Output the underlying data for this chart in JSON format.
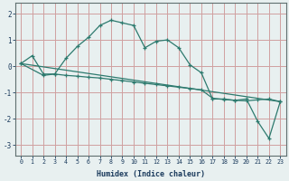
{
  "xlabel": "Humidex (Indice chaleur)",
  "ylabel": "",
  "background_color": "#e8f0f0",
  "grid_color": "#d0a0a0",
  "line_color": "#2d7a6e",
  "xlim": [
    -0.5,
    23.5
  ],
  "ylim": [
    -3.4,
    2.4
  ],
  "yticks": [
    2,
    1,
    0,
    -1,
    -2,
    -3
  ],
  "xticks": [
    0,
    1,
    2,
    3,
    4,
    5,
    6,
    7,
    8,
    9,
    10,
    11,
    12,
    13,
    14,
    15,
    16,
    17,
    18,
    19,
    20,
    21,
    22,
    23
  ],
  "series": [
    {
      "x": [
        0,
        1,
        2,
        3,
        4,
        5,
        6,
        7,
        8,
        9,
        10,
        11,
        12,
        13,
        14,
        15,
        16,
        17,
        18,
        19,
        20,
        21,
        22,
        23
      ],
      "y": [
        0.1,
        0.4,
        -0.3,
        -0.3,
        0.3,
        0.75,
        1.1,
        1.55,
        1.75,
        1.65,
        1.55,
        0.7,
        0.95,
        1.0,
        0.7,
        0.05,
        -0.25,
        -1.25,
        -1.25,
        -1.3,
        -1.25,
        -2.1,
        -2.75,
        -1.35
      ]
    },
    {
      "x": [
        0,
        2,
        3,
        4,
        5,
        6,
        7,
        8,
        9,
        10,
        11,
        12,
        13,
        14,
        15,
        16,
        17,
        18,
        19,
        20,
        21,
        22,
        23
      ],
      "y": [
        0.1,
        -0.35,
        -0.3,
        -0.35,
        -0.38,
        -0.42,
        -0.45,
        -0.5,
        -0.55,
        -0.6,
        -0.65,
        -0.7,
        -0.75,
        -0.8,
        -0.85,
        -0.9,
        -1.22,
        -1.27,
        -1.3,
        -1.32,
        -1.28,
        -1.25,
        -1.35
      ]
    },
    {
      "x": [
        0,
        23
      ],
      "y": [
        0.1,
        -1.35
      ]
    }
  ]
}
